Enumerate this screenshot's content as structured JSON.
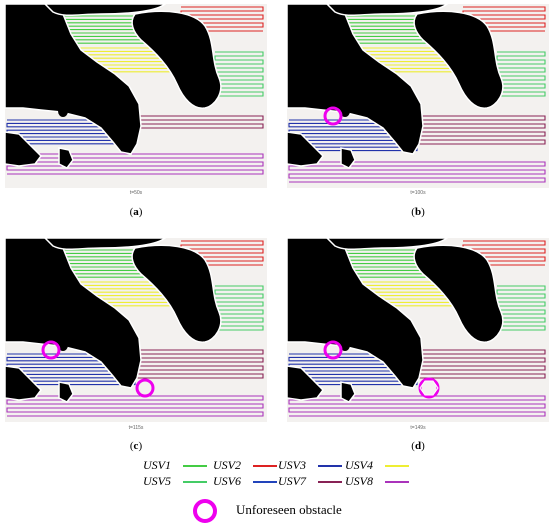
{
  "panels": [
    {
      "label": "a",
      "time": "t=50s"
    },
    {
      "label": "b",
      "time": "t=100s"
    },
    {
      "label": "c",
      "time": "t=115s"
    },
    {
      "label": "d",
      "time": "t=149s"
    }
  ],
  "legend": [
    {
      "name": "USV1",
      "color": "#44cc44"
    },
    {
      "name": "USV2",
      "color": "#dd2222"
    },
    {
      "name": "USV3",
      "color": "#2233aa"
    },
    {
      "name": "USV4",
      "color": "#eeee33"
    },
    {
      "name": "USV5",
      "color": "#44cc66"
    },
    {
      "name": "USV6",
      "color": "#2244bb"
    },
    {
      "name": "USV7",
      "color": "#882255"
    },
    {
      "name": "USV8",
      "color": "#aa33bb"
    }
  ],
  "obstacle_legend": {
    "label": "Unforeseen obstacle",
    "color": "#ee00ee"
  }
}
